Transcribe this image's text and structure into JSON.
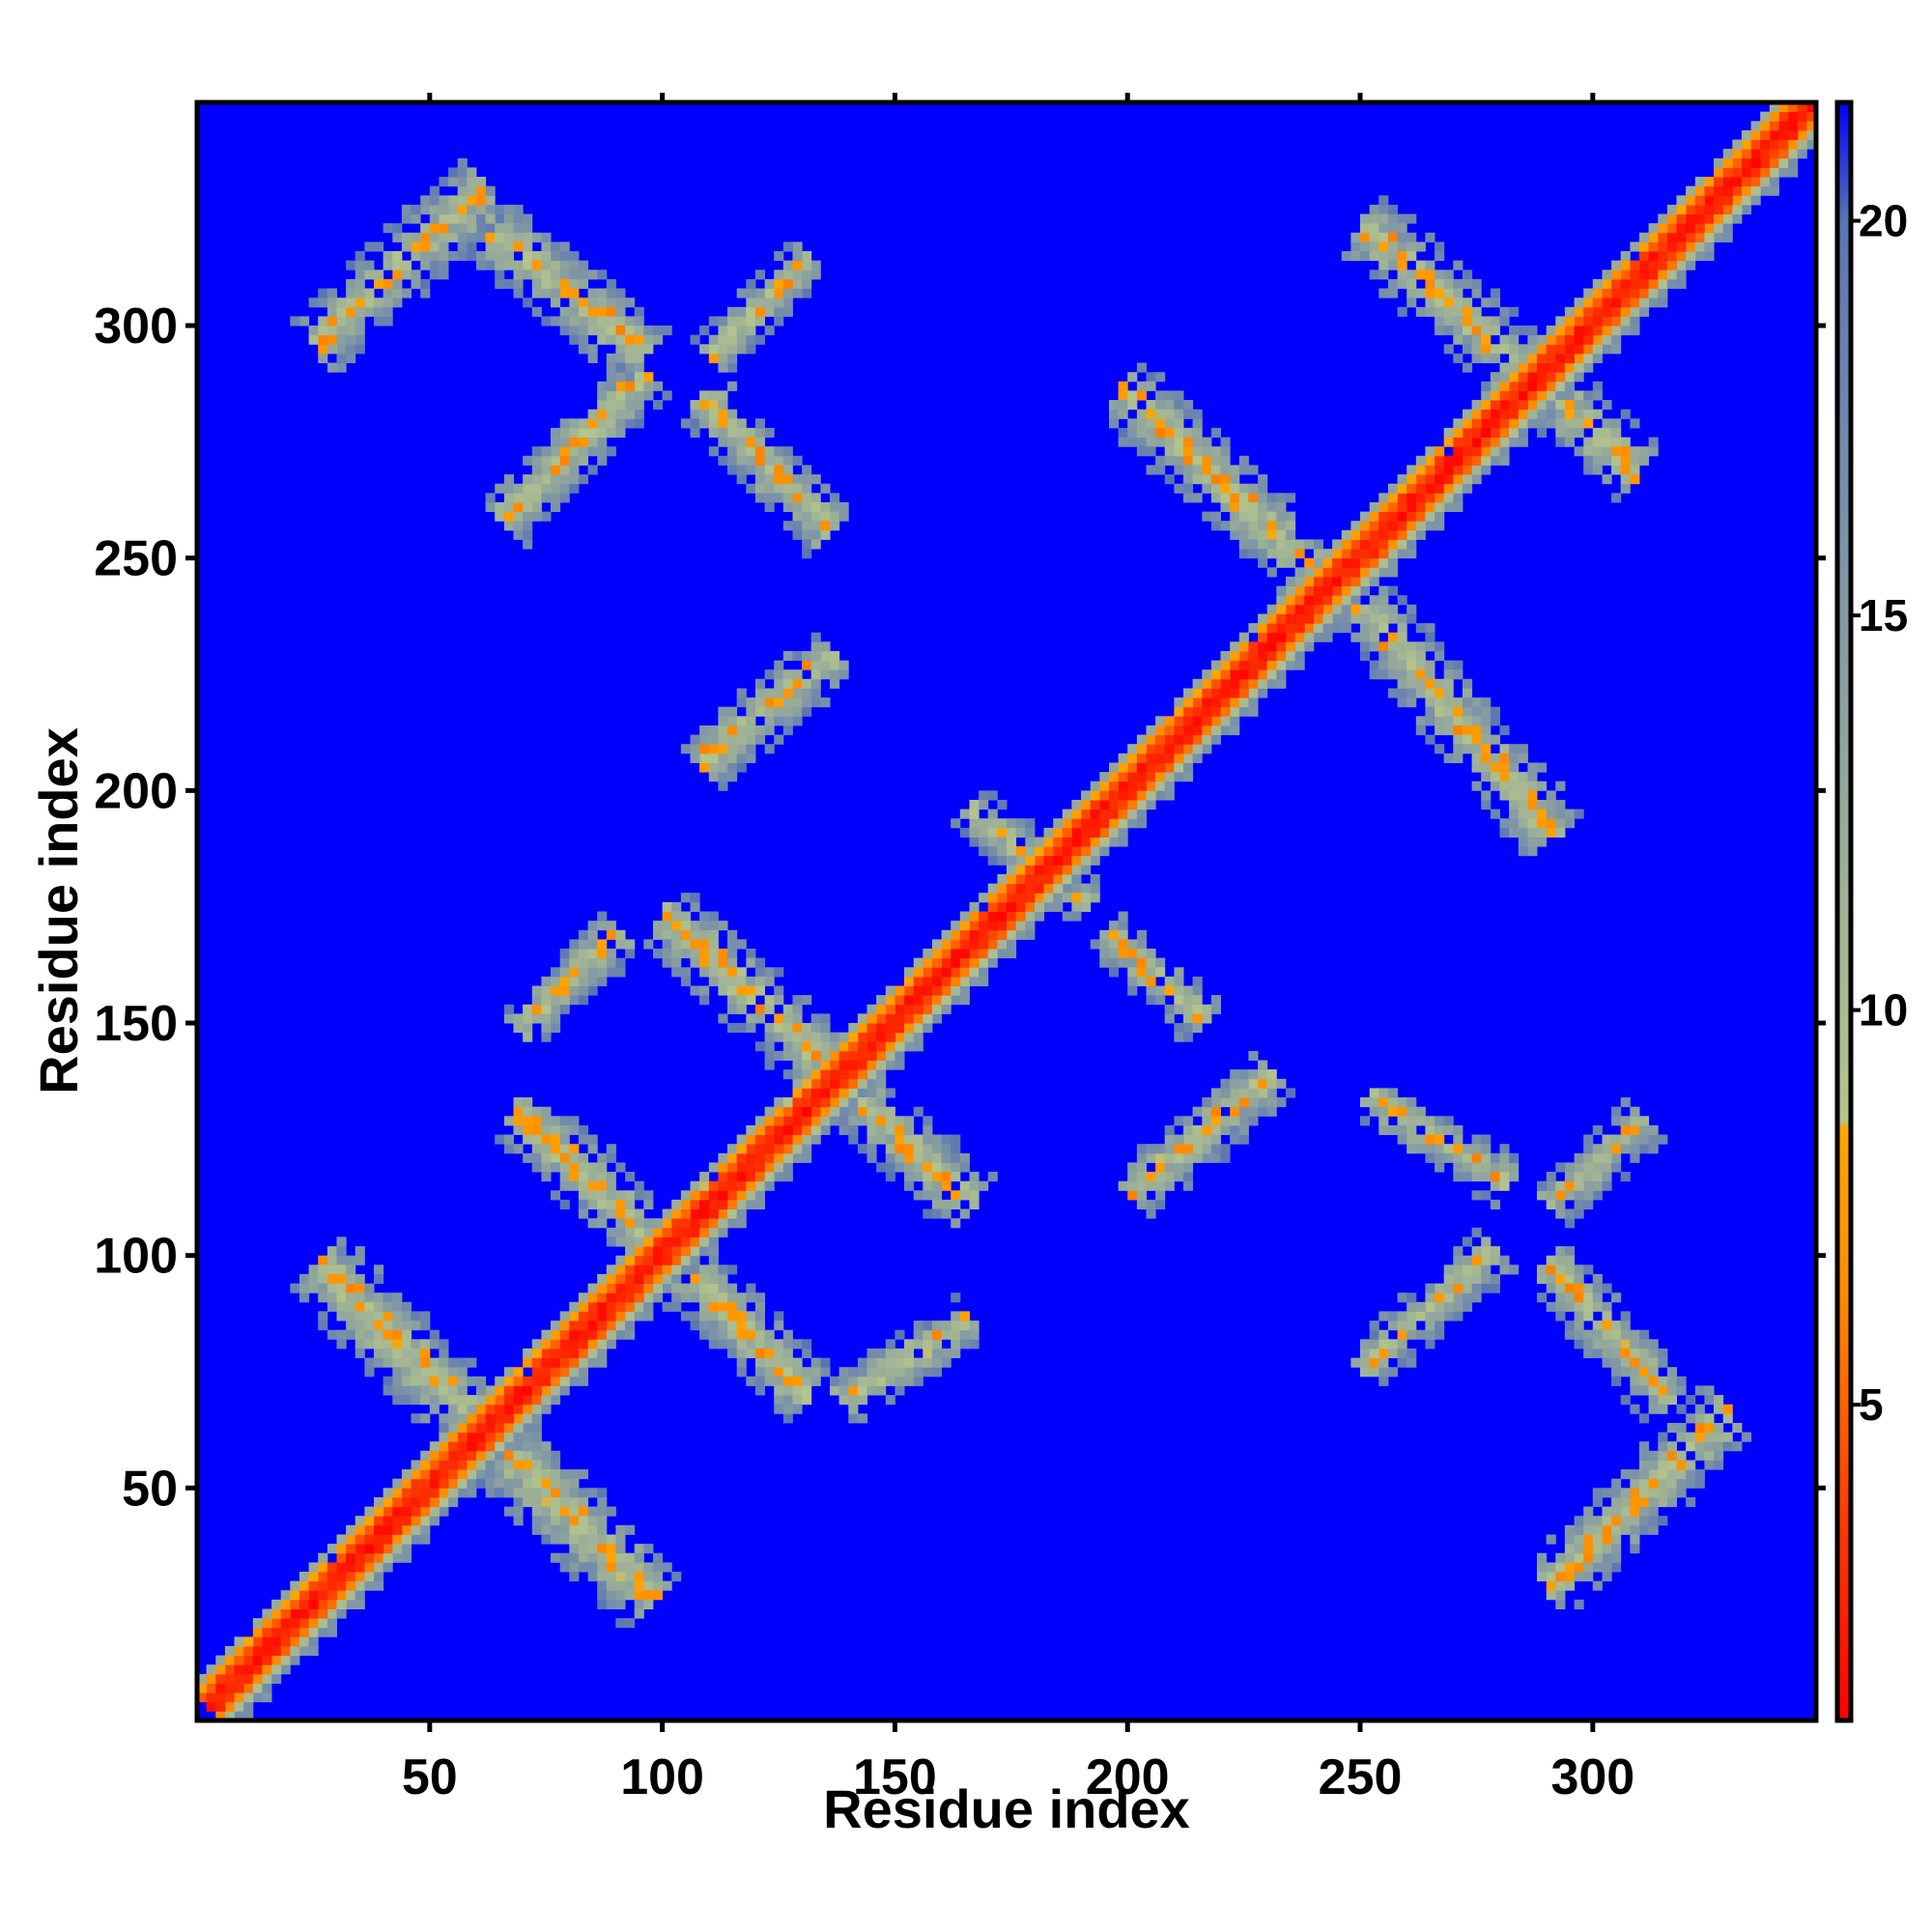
{
  "chart_data": {
    "type": "heatmap",
    "title": "",
    "xlabel": "Residue index",
    "ylabel": "Residue index",
    "xlim": [
      0,
      348
    ],
    "ylim": [
      0,
      348
    ],
    "x_ticks": [
      50,
      100,
      150,
      200,
      250,
      300
    ],
    "y_ticks": [
      50,
      100,
      150,
      200,
      250,
      300
    ],
    "grid": false,
    "colorbar": {
      "range": [
        1,
        21.5
      ],
      "ticks": [
        5,
        10,
        15,
        20
      ],
      "colors": [
        {
          "value": 1.0,
          "color": "#ff0000"
        },
        {
          "value": 4.0,
          "color": "#ff4500"
        },
        {
          "value": 6.5,
          "color": "#ff8c00"
        },
        {
          "value": 8.5,
          "color": "#ffa500"
        },
        {
          "value": 8.6,
          "color": "#b4c48c"
        },
        {
          "value": 12.0,
          "color": "#9aae98"
        },
        {
          "value": 16.0,
          "color": "#7b92a8"
        },
        {
          "value": 20.0,
          "color": "#5a74b4"
        },
        {
          "value": 21.5,
          "color": "#0000ff"
        }
      ]
    },
    "background_value": 21.5,
    "contact_bands": [
      {
        "x0": 2,
        "y0": 2,
        "x1": 347,
        "y1": 347,
        "width": 6
      },
      {
        "x0": 25,
        "y0": 97,
        "x1": 97,
        "y1": 25,
        "width": 8
      },
      {
        "x0": 25,
        "y0": 295,
        "x1": 60,
        "y1": 328,
        "width": 7
      },
      {
        "x0": 55,
        "y0": 325,
        "x1": 95,
        "y1": 293,
        "width": 7
      },
      {
        "x0": 65,
        "y0": 257,
        "x1": 95,
        "y1": 288,
        "width": 6
      },
      {
        "x0": 108,
        "y0": 283,
        "x1": 135,
        "y1": 255,
        "width": 6
      },
      {
        "x0": 110,
        "y0": 293,
        "x1": 130,
        "y1": 313,
        "width": 5
      },
      {
        "x0": 108,
        "y0": 205,
        "x1": 135,
        "y1": 228,
        "width": 6
      },
      {
        "x0": 100,
        "y0": 172,
        "x1": 165,
        "y1": 110,
        "width": 7
      },
      {
        "x0": 68,
        "y0": 130,
        "x1": 130,
        "y1": 70,
        "width": 7
      },
      {
        "x0": 68,
        "y0": 148,
        "x1": 90,
        "y1": 168,
        "width": 5
      },
      {
        "x0": 138,
        "y0": 68,
        "x1": 165,
        "y1": 85,
        "width": 5
      },
      {
        "x0": 200,
        "y0": 112,
        "x1": 230,
        "y1": 138,
        "width": 6
      },
      {
        "x0": 198,
        "y0": 285,
        "x1": 240,
        "y1": 245,
        "width": 7
      },
      {
        "x0": 250,
        "y0": 238,
        "x1": 290,
        "y1": 190,
        "width": 7
      },
      {
        "x0": 250,
        "y0": 320,
        "x1": 308,
        "y1": 268,
        "width": 7
      },
      {
        "x0": 251,
        "y0": 133,
        "x1": 280,
        "y1": 115,
        "width": 5
      },
      {
        "x0": 290,
        "y0": 28,
        "x1": 328,
        "y1": 65,
        "width": 7
      },
      {
        "x0": 290,
        "y0": 97,
        "x1": 315,
        "y1": 68,
        "width": 6
      },
      {
        "x0": 290,
        "y0": 110,
        "x1": 310,
        "y1": 128,
        "width": 5
      },
      {
        "x0": 250,
        "y0": 75,
        "x1": 278,
        "y1": 100,
        "width": 5
      },
      {
        "x0": 165,
        "y0": 195,
        "x1": 190,
        "y1": 175,
        "width": 5
      },
      {
        "x0": 195,
        "y0": 168,
        "x1": 215,
        "y1": 150,
        "width": 5
      }
    ]
  }
}
